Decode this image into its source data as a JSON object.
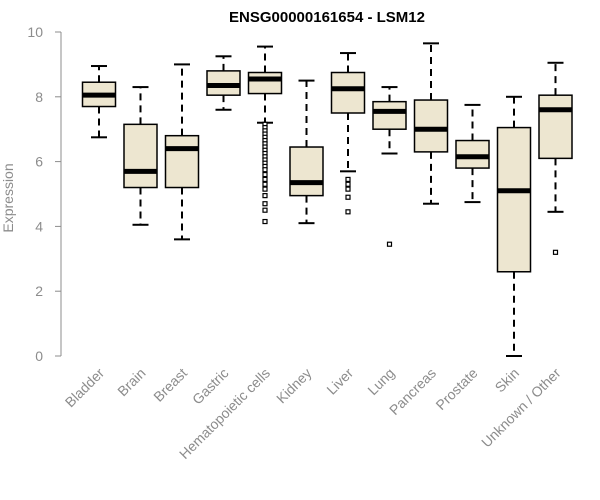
{
  "chart_data": {
    "type": "box",
    "title": "ENSG00000161654 - LSM12",
    "ylabel": "Expression",
    "xlabel": "",
    "ylim": [
      0,
      10
    ],
    "yticks": [
      0,
      2,
      4,
      6,
      8,
      10
    ],
    "colors": {
      "box_fill": "#ede6d0",
      "box_stroke": "#000000",
      "axis": "#8c8c8c"
    },
    "categories": [
      "Bladder",
      "Brain",
      "Breast",
      "Gastric",
      "Hematopoietic cells",
      "Kidney",
      "Liver",
      "Lung",
      "Pancreas",
      "Prostate",
      "Skin",
      "Unknown / Other"
    ],
    "boxes": [
      {
        "category": "Bladder",
        "whisker_low": 6.75,
        "q1": 7.7,
        "median": 8.05,
        "q3": 8.45,
        "whisker_high": 8.95,
        "outliers": []
      },
      {
        "category": "Brain",
        "whisker_low": 4.05,
        "q1": 5.2,
        "median": 5.7,
        "q3": 7.15,
        "whisker_high": 8.3,
        "outliers": []
      },
      {
        "category": "Breast",
        "whisker_low": 3.6,
        "q1": 5.2,
        "median": 6.4,
        "q3": 6.8,
        "whisker_high": 9.0,
        "outliers": []
      },
      {
        "category": "Gastric",
        "whisker_low": 7.6,
        "q1": 8.05,
        "median": 8.35,
        "q3": 8.8,
        "whisker_high": 9.25,
        "outliers": []
      },
      {
        "category": "Hematopoietic cells",
        "whisker_low": 7.2,
        "q1": 8.1,
        "median": 8.55,
        "q3": 8.75,
        "whisker_high": 9.55,
        "outliers": [
          7.15,
          7.05,
          6.95,
          6.85,
          6.75,
          6.65,
          6.55,
          6.45,
          6.35,
          6.25,
          6.15,
          6.05,
          5.95,
          5.85,
          5.75,
          5.6,
          5.45,
          5.3,
          5.15,
          4.95,
          4.7,
          4.5,
          4.15
        ]
      },
      {
        "category": "Kidney",
        "whisker_low": 4.1,
        "q1": 4.95,
        "median": 5.35,
        "q3": 6.45,
        "whisker_high": 8.5,
        "outliers": []
      },
      {
        "category": "Liver",
        "whisker_low": 5.7,
        "q1": 7.5,
        "median": 8.25,
        "q3": 8.75,
        "whisker_high": 9.35,
        "outliers": [
          5.45,
          5.3,
          5.15,
          4.9,
          4.45
        ]
      },
      {
        "category": "Lung",
        "whisker_low": 6.25,
        "q1": 7.0,
        "median": 7.55,
        "q3": 7.85,
        "whisker_high": 8.3,
        "outliers": [
          3.45
        ]
      },
      {
        "category": "Pancreas",
        "whisker_low": 4.7,
        "q1": 6.3,
        "median": 7.0,
        "q3": 7.9,
        "whisker_high": 9.65,
        "outliers": []
      },
      {
        "category": "Prostate",
        "whisker_low": 4.75,
        "q1": 5.8,
        "median": 6.15,
        "q3": 6.65,
        "whisker_high": 7.75,
        "outliers": []
      },
      {
        "category": "Skin",
        "whisker_low": 0.0,
        "q1": 2.6,
        "median": 5.1,
        "q3": 7.05,
        "whisker_high": 8.0,
        "outliers": []
      },
      {
        "category": "Unknown / Other",
        "whisker_low": 4.45,
        "q1": 6.1,
        "median": 7.6,
        "q3": 8.05,
        "whisker_high": 9.05,
        "outliers": [
          3.2
        ]
      }
    ]
  }
}
